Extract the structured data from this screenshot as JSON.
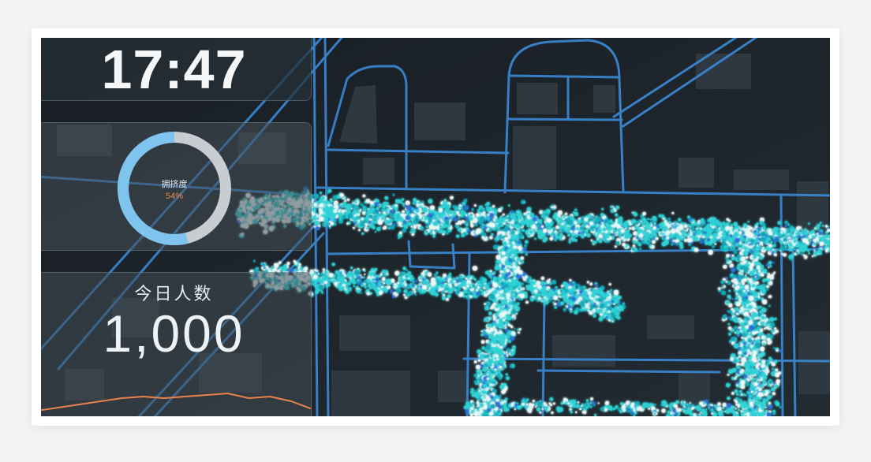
{
  "clock": {
    "time": "17:47"
  },
  "congestion": {
    "label": "拥挤度",
    "value_text": "54%",
    "percent": 54
  },
  "visitors": {
    "label": "今日人数",
    "count": "1,000",
    "trend": [
      1,
      3,
      5,
      7,
      9,
      10,
      9,
      10,
      11,
      12,
      9,
      10,
      7,
      2
    ]
  },
  "colors": {
    "ring_fill": "#7fc3ef",
    "ring_track": "#c9cdd1",
    "percent_text": "#f28a4c",
    "trend_line": "#e8834e",
    "road": "#3b8ad6",
    "building": "#2d3840",
    "crowd_cyan": "#2fd3d6",
    "crowd_white": "#eef8f8",
    "crowd_teal": "#15a9b8",
    "crowd_blue": "#2a6fd6"
  }
}
